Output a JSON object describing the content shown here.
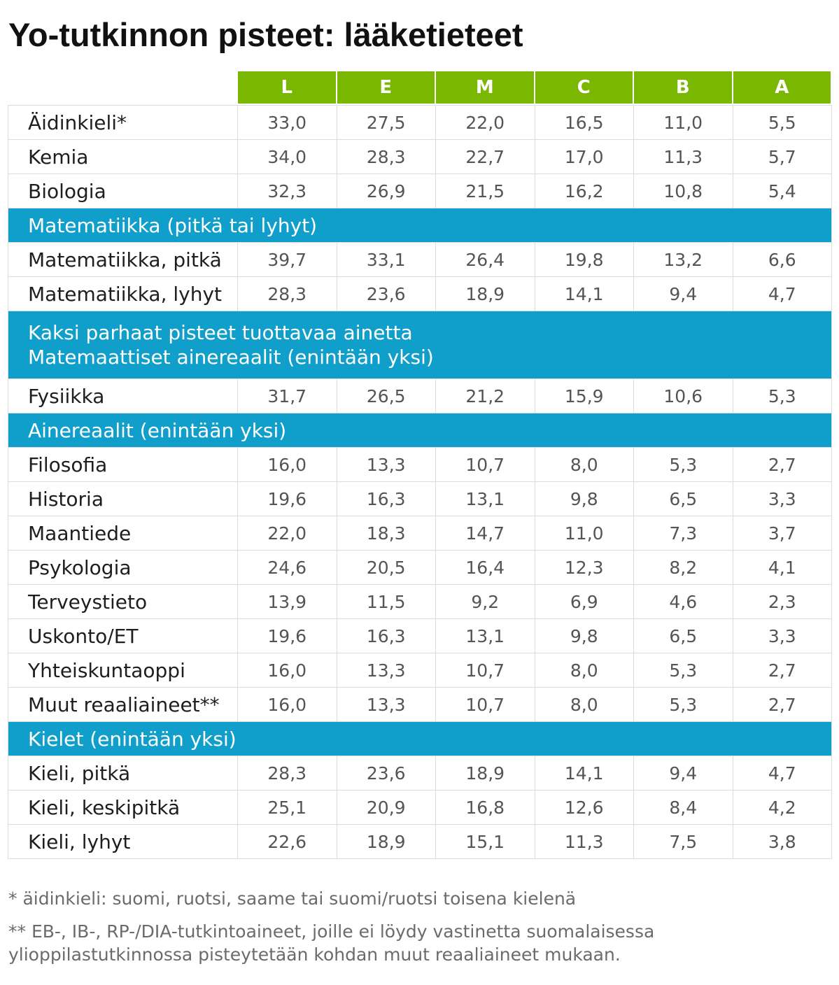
{
  "title": "Yo-tutkinnon pisteet: lääketieteet",
  "grades": [
    "L",
    "E",
    "M",
    "C",
    "B",
    "A"
  ],
  "rows": [
    {
      "label": "Äidinkieli*",
      "scores": [
        "33,0",
        "27,5",
        "22,0",
        "16,5",
        "11,0",
        "5,5"
      ]
    },
    {
      "label": "Kemia",
      "scores": [
        "34,0",
        "28,3",
        "22,7",
        "17,0",
        "11,3",
        "5,7"
      ]
    },
    {
      "label": "Biologia",
      "scores": [
        "32,3",
        "26,9",
        "21,5",
        "16,2",
        "10,8",
        "5,4"
      ]
    },
    {
      "heading_lines": [
        "Matematiikka (pitkä tai lyhyt)"
      ]
    },
    {
      "label": "Matematiikka, pitkä",
      "scores": [
        "39,7",
        "33,1",
        "26,4",
        "19,8",
        "13,2",
        "6,6"
      ]
    },
    {
      "label": "Matematiikka, lyhyt",
      "scores": [
        "28,3",
        "23,6",
        "18,9",
        "14,1",
        "9,4",
        "4,7"
      ]
    },
    {
      "heading_lines": [
        "Kaksi parhaat pisteet tuottavaa ainetta",
        "Matemaattiset ainereaalit (enintään yksi)"
      ]
    },
    {
      "label": "Fysiikka",
      "scores": [
        "31,7",
        "26,5",
        "21,2",
        "15,9",
        "10,6",
        "5,3"
      ]
    },
    {
      "heading_lines": [
        "Ainereaalit (enintään yksi)"
      ]
    },
    {
      "label": "Filosofia",
      "scores": [
        "16,0",
        "13,3",
        "10,7",
        "8,0",
        "5,3",
        "2,7"
      ]
    },
    {
      "label": "Historia",
      "scores": [
        "19,6",
        "16,3",
        "13,1",
        "9,8",
        "6,5",
        "3,3"
      ]
    },
    {
      "label": "Maantiede",
      "scores": [
        "22,0",
        "18,3",
        "14,7",
        "11,0",
        "7,3",
        "3,7"
      ]
    },
    {
      "label": "Psykologia",
      "scores": [
        "24,6",
        "20,5",
        "16,4",
        "12,3",
        "8,2",
        "4,1"
      ]
    },
    {
      "label": "Terveystieto",
      "scores": [
        "13,9",
        "11,5",
        "9,2",
        "6,9",
        "4,6",
        "2,3"
      ]
    },
    {
      "label": "Uskonto/ET",
      "scores": [
        "19,6",
        "16,3",
        "13,1",
        "9,8",
        "6,5",
        "3,3"
      ]
    },
    {
      "label": "Yhteiskuntaoppi",
      "scores": [
        "16,0",
        "13,3",
        "10,7",
        "8,0",
        "5,3",
        "2,7"
      ]
    },
    {
      "label": "Muut reaaliaineet**",
      "scores": [
        "16,0",
        "13,3",
        "10,7",
        "8,0",
        "5,3",
        "2,7"
      ]
    },
    {
      "heading_lines": [
        "Kielet (enintään yksi)"
      ]
    },
    {
      "label": "Kieli, pitkä",
      "scores": [
        "28,3",
        "23,6",
        "18,9",
        "14,1",
        "9,4",
        "4,7"
      ]
    },
    {
      "label": "Kieli, keskipitkä",
      "scores": [
        "25,1",
        "20,9",
        "16,8",
        "12,6",
        "8,4",
        "4,2"
      ]
    },
    {
      "label": "Kieli, lyhyt",
      "scores": [
        "22,6",
        "18,9",
        "15,1",
        "11,3",
        "7,5",
        "3,8"
      ]
    }
  ],
  "footnotes": [
    {
      "lines": [
        "* äidinkieli: suomi, ruotsi, saame tai suomi/ruotsi toisena kielenä"
      ]
    },
    {
      "lines": [
        "** EB-, IB-, RP-/DIA-tutkintoaineet, joille ei löydy vastinetta suomalaisessa",
        "ylioppilastutkinnossa pisteytetään kohdan muut reaaliaineet mukaan."
      ]
    }
  ],
  "colors": {
    "green": "#79b700",
    "blue": "#109fca",
    "line": "#dcdcdc",
    "label": "#1e1e1e",
    "score": "#555555",
    "foot": "#6b6b6b",
    "title": "#111111"
  }
}
